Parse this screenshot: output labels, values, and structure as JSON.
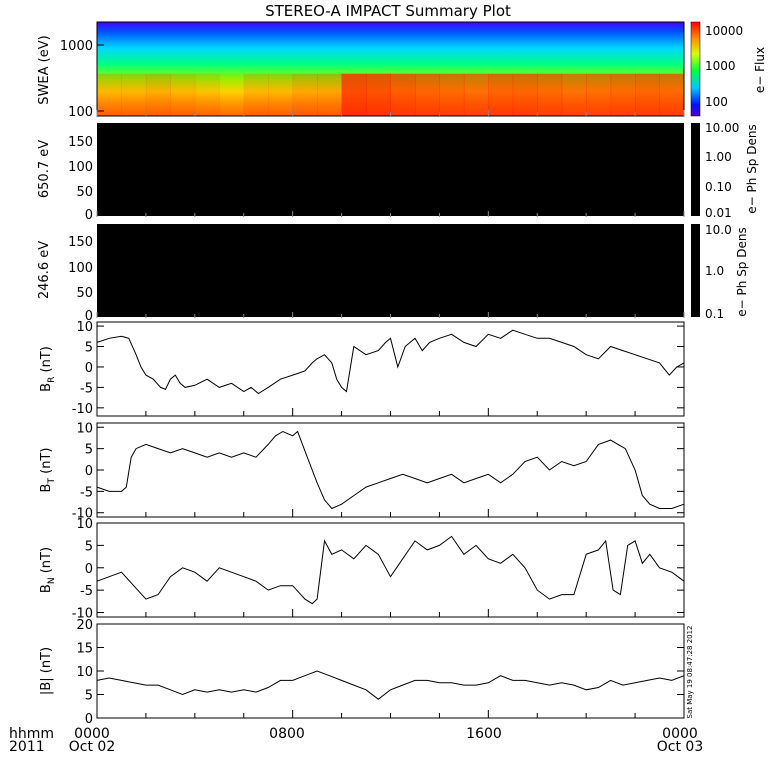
{
  "title": "STEREO-A IMPACT Summary Plot",
  "stamp": "Sat May 19 08:47:28 2012",
  "footer": {
    "left_line1": "hhmm",
    "left_line2": "2011",
    "ticks": [
      {
        "top": "0000",
        "bottom": "Oct 02"
      },
      {
        "top": "0800",
        "bottom": ""
      },
      {
        "top": "1600",
        "bottom": ""
      },
      {
        "top": "0000",
        "bottom": "Oct 03"
      }
    ]
  },
  "chart_data": [
    {
      "type": "heatmap",
      "id": "swea",
      "ylabel": "SWEA (eV)",
      "yscale": "log",
      "ylim": [
        95,
        2200
      ],
      "yticks": [
        "1000",
        "100"
      ],
      "colorbar": {
        "label": "e− Flux",
        "scale": "log",
        "range": [
          60,
          12000
        ],
        "ticks": [
          "10000",
          "1000",
          "100"
        ]
      },
      "x_hours": [
        0,
        1,
        2,
        3,
        4,
        5,
        6,
        7,
        8,
        9,
        10,
        11,
        12,
        13,
        14,
        15,
        16,
        17,
        18,
        19,
        20,
        21,
        22,
        23,
        24
      ],
      "flux_at_100eV": [
        3000,
        3000,
        3300,
        3000,
        2700,
        2300,
        3000,
        3000,
        3500,
        3600,
        9000,
        8500,
        7500,
        7000,
        6500,
        6300,
        7000,
        7000,
        6500,
        6000,
        6200,
        6500,
        6800,
        6600,
        6500
      ]
    },
    {
      "type": "heatmap",
      "id": "pad650",
      "ylabel": "650.7 eV",
      "ylim": [
        0,
        180
      ],
      "yticks": [
        "150",
        "100",
        "50",
        "0"
      ],
      "colorbar": {
        "label": "e− Ph Sp Dens",
        "scale": "log",
        "ticks": [
          "10.00",
          "1.00",
          "0.10",
          "0.01"
        ]
      }
    },
    {
      "type": "heatmap",
      "id": "pad246",
      "ylabel": "246.6 eV",
      "ylim": [
        0,
        180
      ],
      "yticks": [
        "150",
        "100",
        "50",
        "0"
      ],
      "colorbar": {
        "label": "e− Ph Sp Dens",
        "scale": "log",
        "ticks": [
          "10.0",
          "1.0",
          "0.1"
        ]
      }
    },
    {
      "type": "line",
      "id": "br",
      "ylabel": "B",
      "ylabel_sub": "R",
      "ylabel_unit": "(nT)",
      "ylim": [
        -12,
        11
      ],
      "yticks": [
        "10",
        "5",
        "0",
        "-5",
        "-10"
      ],
      "x": [
        0,
        0.5,
        1.0,
        1.3,
        1.6,
        1.8,
        2.0,
        2.3,
        2.6,
        2.8,
        3.0,
        3.2,
        3.4,
        3.6,
        4.0,
        4.5,
        5.0,
        5.5,
        6.0,
        6.3,
        6.6,
        7.0,
        7.5,
        8.0,
        8.5,
        8.8,
        9.0,
        9.3,
        9.6,
        9.8,
        10.0,
        10.2,
        10.5,
        11.0,
        11.5,
        11.8,
        12.0,
        12.3,
        12.6,
        13.0,
        13.3,
        13.6,
        14.0,
        14.5,
        15.0,
        15.5,
        16.0,
        16.5,
        17.0,
        17.5,
        18.0,
        18.5,
        19.0,
        19.5,
        20.0,
        20.5,
        21.0,
        21.5,
        22.0,
        22.5,
        23.0,
        23.4,
        23.7,
        24.0
      ],
      "y": [
        6,
        7,
        7.5,
        7,
        3,
        0,
        -2,
        -3,
        -5,
        -5.5,
        -3,
        -2,
        -4,
        -5,
        -4.5,
        -3,
        -5,
        -4,
        -6,
        -5,
        -6.5,
        -5,
        -3,
        -2,
        -1,
        1,
        2,
        3,
        1,
        -3,
        -5,
        -6,
        5,
        3,
        4,
        6,
        7,
        0,
        5,
        7,
        4,
        6,
        7,
        8,
        6,
        5,
        8,
        7,
        9,
        8,
        7,
        7,
        6,
        5,
        3,
        2,
        5,
        4,
        3,
        2,
        1,
        -2,
        0,
        1
      ]
    },
    {
      "type": "line",
      "id": "bt",
      "ylabel": "B",
      "ylabel_sub": "T",
      "ylabel_unit": "(nT)",
      "ylim": [
        -11,
        11
      ],
      "yticks": [
        "10",
        "5",
        "0",
        "-5",
        "-10"
      ],
      "x": [
        0,
        0.5,
        1.0,
        1.2,
        1.4,
        1.6,
        2.0,
        2.5,
        3.0,
        3.5,
        4.0,
        4.5,
        5.0,
        5.5,
        6.0,
        6.5,
        7.0,
        7.3,
        7.6,
        8.0,
        8.2,
        8.6,
        9.0,
        9.3,
        9.6,
        10.0,
        10.5,
        11.0,
        11.5,
        12.0,
        12.5,
        13.0,
        13.5,
        14.0,
        14.5,
        15.0,
        15.5,
        16.0,
        16.5,
        17.0,
        17.5,
        18.0,
        18.5,
        19.0,
        19.5,
        20.0,
        20.5,
        21.0,
        21.3,
        21.6,
        22.0,
        22.3,
        22.6,
        23.0,
        23.5,
        24.0
      ],
      "y": [
        -4,
        -5,
        -5,
        -4,
        3,
        5,
        6,
        5,
        4,
        5,
        4,
        3,
        4,
        3,
        4,
        3,
        6,
        8,
        9,
        8,
        9,
        3,
        -3,
        -7,
        -9,
        -8,
        -6,
        -4,
        -3,
        -2,
        -1,
        -2,
        -3,
        -2,
        -1,
        -3,
        -2,
        -1,
        -3,
        -1,
        2,
        3,
        0,
        2,
        1,
        2,
        6,
        7,
        6,
        5,
        0,
        -6,
        -8,
        -9,
        -9,
        -8
      ]
    },
    {
      "type": "line",
      "id": "bn",
      "ylabel": "B",
      "ylabel_sub": "N",
      "ylabel_unit": "(nT)",
      "ylim": [
        -11,
        10
      ],
      "yticks": [
        "10",
        "5",
        "0",
        "-5",
        "-10"
      ],
      "x": [
        0,
        0.5,
        1.0,
        1.5,
        2.0,
        2.5,
        3.0,
        3.5,
        4.0,
        4.5,
        5.0,
        5.5,
        6.0,
        6.5,
        7.0,
        7.5,
        8.0,
        8.5,
        8.8,
        9.0,
        9.3,
        9.6,
        10.0,
        10.5,
        11.0,
        11.5,
        12.0,
        12.5,
        13.0,
        13.5,
        14.0,
        14.5,
        15.0,
        15.5,
        16.0,
        16.5,
        17.0,
        17.5,
        18.0,
        18.5,
        19.0,
        19.5,
        20.0,
        20.5,
        20.8,
        21.1,
        21.4,
        21.7,
        22.0,
        22.3,
        22.6,
        23.0,
        23.5,
        24.0
      ],
      "y": [
        -3,
        -2,
        -1,
        -4,
        -7,
        -6,
        -2,
        0,
        -1,
        -3,
        0,
        -1,
        -2,
        -3,
        -5,
        -4,
        -4,
        -7,
        -8,
        -7,
        6,
        3,
        4,
        2,
        5,
        3,
        -2,
        2,
        6,
        4,
        5,
        7,
        3,
        5,
        2,
        1,
        3,
        0,
        -5,
        -7,
        -6,
        -6,
        3,
        4,
        6,
        -5,
        -6,
        5,
        6,
        1,
        3,
        0,
        -1,
        -3
      ]
    },
    {
      "type": "line",
      "id": "bmag",
      "ylabel": "|B| (nT)",
      "ylim": [
        0,
        20
      ],
      "yticks": [
        "20",
        "15",
        "10",
        "5",
        "0"
      ],
      "x": [
        0,
        0.5,
        1.0,
        1.5,
        2.0,
        2.5,
        3.0,
        3.5,
        4.0,
        4.5,
        5.0,
        5.5,
        6.0,
        6.5,
        7.0,
        7.5,
        8.0,
        8.5,
        9.0,
        9.5,
        10.0,
        10.5,
        11.0,
        11.5,
        12.0,
        12.5,
        13.0,
        13.5,
        14.0,
        14.5,
        15.0,
        15.5,
        16.0,
        16.5,
        17.0,
        17.5,
        18.0,
        18.5,
        19.0,
        19.5,
        20.0,
        20.5,
        21.0,
        21.5,
        22.0,
        22.5,
        23.0,
        23.5,
        24.0
      ],
      "y": [
        8,
        8.5,
        8,
        7.5,
        7,
        7,
        6,
        5,
        6,
        5.5,
        6,
        5.5,
        6,
        5.5,
        6.5,
        8,
        8,
        9,
        10,
        9,
        8,
        7,
        6,
        4,
        6,
        7,
        8,
        8,
        7.5,
        7.5,
        7,
        7,
        7.5,
        9,
        8,
        8,
        7.5,
        7,
        7.5,
        7,
        6,
        6.5,
        8,
        7,
        7.5,
        8,
        8.5,
        8,
        9
      ]
    }
  ]
}
